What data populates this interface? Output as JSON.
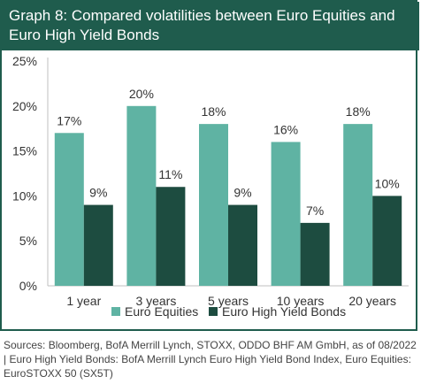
{
  "title": "Graph 8: Compared volatilities between Euro Equities and Euro High Yield Bonds",
  "source": "Sources: Bloomberg, BofA Merrill Lynch, STOXX, ODDO BHF AM GmbH, as of 08/2022 | Euro High Yield Bonds: BofA Merrill Lynch Euro High Yield Bond Index, Euro Equities: EuroSTOXX 50 (SX5T)",
  "colors": {
    "header": "#1f5c4d",
    "equities": "#5fb3a3",
    "bonds": "#1d4c40"
  },
  "chart_data": {
    "type": "bar",
    "categories": [
      "1 year",
      "3 years",
      "5 years",
      "10 years",
      "20 years"
    ],
    "series": [
      {
        "name": "Euro Equities",
        "values": [
          17,
          20,
          18,
          16,
          18
        ],
        "labels": [
          "17%",
          "20%",
          "18%",
          "16%",
          "18%"
        ],
        "color": "#5fb3a3"
      },
      {
        "name": "Euro High Yield Bonds",
        "values": [
          9,
          11,
          9,
          7,
          10
        ],
        "labels": [
          "9%",
          "11%",
          "9%",
          "7%",
          "10%"
        ],
        "color": "#1d4c40"
      }
    ],
    "yticks": [
      "0%",
      "5%",
      "10%",
      "15%",
      "20%",
      "25%"
    ],
    "ylim": [
      0,
      25
    ],
    "legend": "bottom",
    "grid": false
  }
}
